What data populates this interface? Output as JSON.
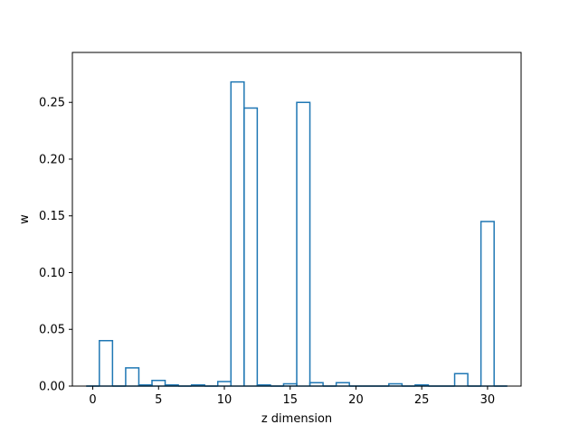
{
  "chart_data": {
    "type": "bar",
    "style": "step-outline",
    "xlabel": "z dimension",
    "ylabel": "w",
    "title": "",
    "xlim": [
      -1.55,
      32.55
    ],
    "ylim": [
      0,
      0.294
    ],
    "xticks": [
      0,
      5,
      10,
      15,
      20,
      25,
      30
    ],
    "xtick_labels": [
      "0",
      "5",
      "10",
      "15",
      "20",
      "25",
      "30"
    ],
    "yticks": [
      0.0,
      0.05,
      0.1,
      0.15,
      0.2,
      0.25
    ],
    "ytick_labels": [
      "0.00",
      "0.05",
      "0.10",
      "0.15",
      "0.20",
      "0.25"
    ],
    "grid": false,
    "color": "#1f77b4",
    "x": [
      0,
      1,
      2,
      3,
      4,
      5,
      6,
      7,
      8,
      9,
      10,
      11,
      12,
      13,
      14,
      15,
      16,
      17,
      18,
      19,
      20,
      21,
      22,
      23,
      24,
      25,
      26,
      27,
      28,
      29,
      30,
      31
    ],
    "values": [
      0.0,
      0.04,
      0.0,
      0.016,
      0.001,
      0.005,
      0.001,
      0.0,
      0.001,
      0.0,
      0.004,
      0.268,
      0.245,
      0.001,
      0.0,
      0.002,
      0.25,
      0.003,
      0.0,
      0.003,
      0.0,
      0.0,
      0.0,
      0.002,
      0.0,
      0.001,
      0.0,
      0.0,
      0.011,
      0.0,
      0.145,
      0.0
    ]
  }
}
